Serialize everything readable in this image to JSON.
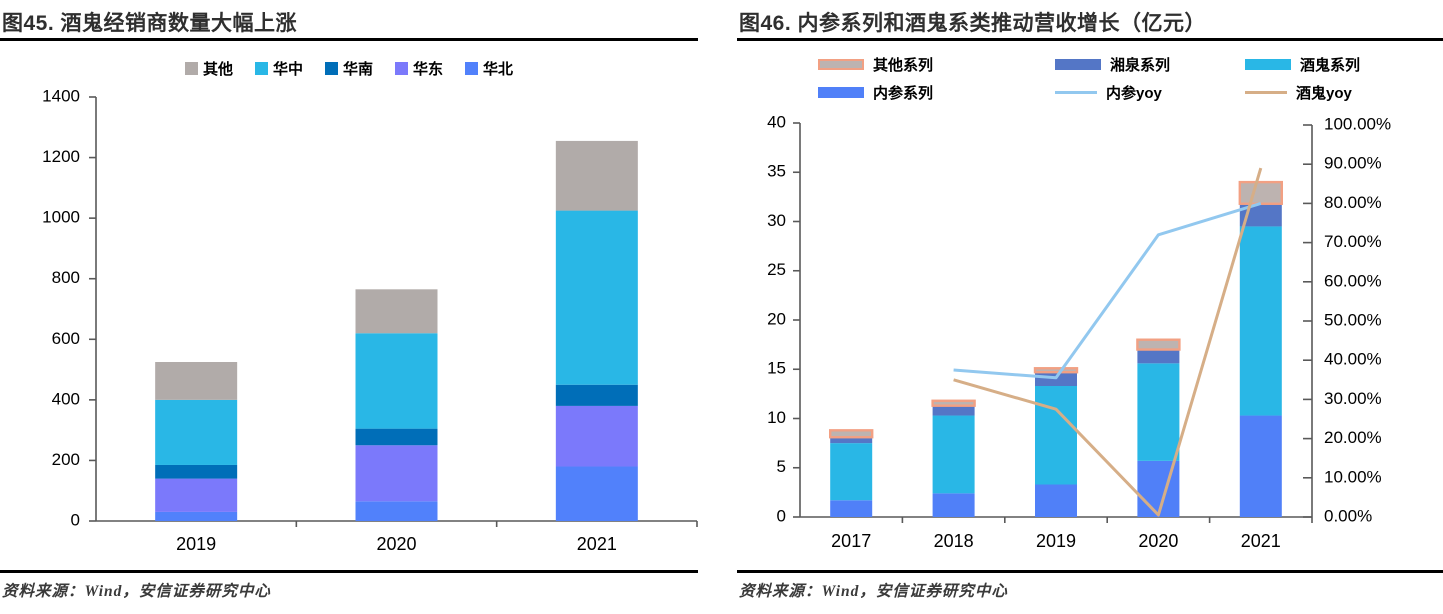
{
  "panels": [
    {
      "title": "图45. 酒鬼经销商数量大幅上涨",
      "source_note": "资料来源：Wind，安信证券研究中心"
    },
    {
      "title": "图46. 内参系列和酒鬼系类推动营收增长（亿元）",
      "source_note": "资料来源：Wind，安信证券研究中心"
    }
  ],
  "chart_data": [
    {
      "type": "bar",
      "stacked": true,
      "title": "图45. 酒鬼经销商数量大幅上涨",
      "categories": [
        "2019",
        "2020",
        "2021"
      ],
      "series": [
        {
          "name": "华北",
          "color": "#5181FB",
          "values": [
            30,
            65,
            180
          ]
        },
        {
          "name": "华东",
          "color": "#7B79FB",
          "values": [
            110,
            185,
            200
          ]
        },
        {
          "name": "华南",
          "color": "#006EB8",
          "values": [
            45,
            55,
            70
          ]
        },
        {
          "name": "华中",
          "color": "#29B7E6",
          "values": [
            215,
            315,
            575
          ]
        },
        {
          "name": "其他",
          "color": "#B1ABA9",
          "values": [
            125,
            145,
            230
          ]
        }
      ],
      "stack_totals": [
        525,
        765,
        1255
      ],
      "legend": [
        {
          "label": "其他",
          "color": "#B1ABA9"
        },
        {
          "label": "华中",
          "color": "#29B7E6"
        },
        {
          "label": "华南",
          "color": "#006EB8"
        },
        {
          "label": "华东",
          "color": "#7B79FB"
        },
        {
          "label": "华北",
          "color": "#5181FB"
        }
      ],
      "ylim": [
        0,
        1400
      ],
      "yticks": [
        0,
        200,
        400,
        600,
        800,
        1000,
        1200,
        1400
      ],
      "grid": false,
      "legend_position": "top"
    },
    {
      "type": "bar+line",
      "stacked": true,
      "title": "图46. 内参系列和酒鬼系类推动营收增长（亿元）",
      "categories": [
        "2017",
        "2018",
        "2019",
        "2020",
        "2021"
      ],
      "bar_series": [
        {
          "name": "内参系列",
          "color": "#5080F8",
          "values": [
            1.7,
            2.4,
            3.3,
            5.7,
            10.3
          ]
        },
        {
          "name": "酒鬼系列",
          "color": "#29B7E6",
          "values": [
            5.8,
            7.9,
            10.0,
            9.9,
            19.2
          ]
        },
        {
          "name": "湘泉系列",
          "color": "#5476C6",
          "values": [
            0.6,
            1.0,
            1.4,
            1.4,
            2.3
          ]
        },
        {
          "name": "其他系列",
          "color": "#BDB3B0",
          "border_color": "#F2A083",
          "values": [
            0.7,
            0.5,
            0.4,
            1.0,
            2.2
          ]
        }
      ],
      "stack_totals": [
        8.8,
        11.8,
        15.1,
        18.0,
        34.0
      ],
      "line_series": [
        {
          "name": "内参yoy",
          "color": "#92C8EF",
          "axis": "right",
          "values": [
            null,
            37.5,
            35.5,
            72,
            80
          ]
        },
        {
          "name": "酒鬼yoy",
          "color": "#D6AE87",
          "axis": "right",
          "values": [
            null,
            35,
            27.5,
            0.5,
            89
          ]
        }
      ],
      "legend": [
        {
          "label": "其他系列",
          "type": "bar",
          "color": "#BDB3B0",
          "border": "#F2A083"
        },
        {
          "label": "湘泉系列",
          "type": "bar",
          "color": "#5476C6"
        },
        {
          "label": "酒鬼系列",
          "type": "bar",
          "color": "#29B7E6"
        },
        {
          "label": "内参系列",
          "type": "bar",
          "color": "#5080F8"
        },
        {
          "label": "内参yoy",
          "type": "line",
          "color": "#92C8EF"
        },
        {
          "label": "酒鬼yoy",
          "type": "line",
          "color": "#D6AE87"
        }
      ],
      "ylim_left": [
        0,
        40
      ],
      "yticks_left": [
        0,
        5,
        10,
        15,
        20,
        25,
        30,
        35,
        40
      ],
      "ylim_right": [
        0,
        100
      ],
      "yticks_right_labels": [
        "0.00%",
        "10.00%",
        "20.00%",
        "30.00%",
        "40.00%",
        "50.00%",
        "60.00%",
        "70.00%",
        "80.00%",
        "90.00%",
        "100.00%"
      ],
      "grid": false,
      "legend_position": "top"
    }
  ],
  "style": {
    "axis_color": "#595959",
    "text_color": "#000000"
  }
}
